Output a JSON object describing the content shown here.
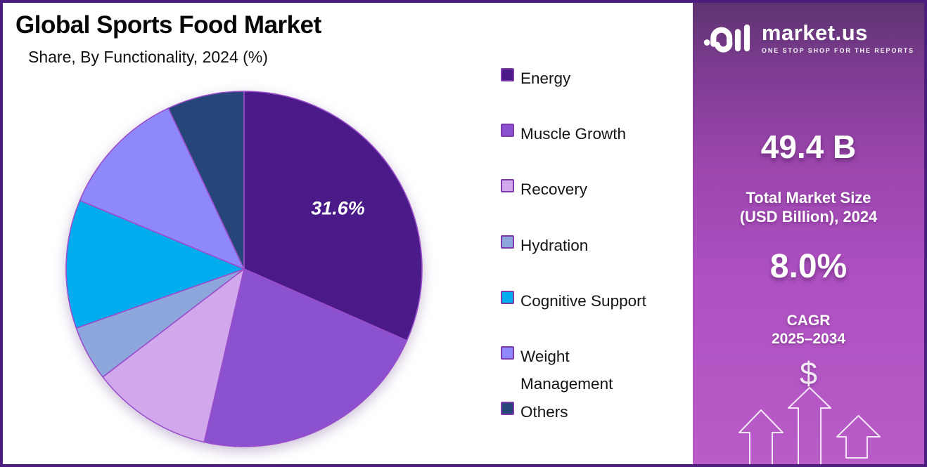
{
  "header": {
    "title": "Global Sports Food Market",
    "subtitle": "Share, By Functionality, 2024 (%)"
  },
  "chart_data": {
    "type": "pie",
    "title": "Global Sports Food Market",
    "subtitle": "Share, By Functionality, 2024 (%)",
    "unit": "%",
    "start_angle_deg": 0,
    "direction": "clockwise",
    "legend_position": "right",
    "slice_stroke": "#9A4ECB",
    "slices": [
      {
        "name": "Energy",
        "value": 31.6,
        "color": "#4A1A88",
        "data_label": "31.6%"
      },
      {
        "name": "Muscle Growth",
        "value": 22.0,
        "color": "#8B51CE"
      },
      {
        "name": "Recovery",
        "value": 11.0,
        "color": "#D2A8EC"
      },
      {
        "name": "Hydration",
        "value": 5.0,
        "color": "#8DA7DC"
      },
      {
        "name": "Cognitive Support",
        "value": 11.7,
        "color": "#00ACEE"
      },
      {
        "name": "Weight Management",
        "value": 11.7,
        "color": "#8E88FB",
        "legend_label": "Weight\nManagement"
      },
      {
        "name": "Others",
        "value": 7.0,
        "color": "#264679"
      }
    ]
  },
  "sidebar": {
    "logo": {
      "brand": "market.us",
      "tagline": "ONE STOP SHOP FOR THE REPORTS"
    },
    "market_size_value": "49.4 B",
    "market_size_label_line1": "Total Market Size",
    "market_size_label_line2": "(USD Billion), 2024",
    "cagr_value": "8.0%",
    "cagr_label_line1": "CAGR",
    "cagr_label_line2": "2025–2034",
    "dollar_symbol": "$",
    "colors": {
      "frame_border": "#4A1D7E",
      "gradient_top": "#5E3470",
      "gradient_bottom": "#B95CC8"
    }
  }
}
